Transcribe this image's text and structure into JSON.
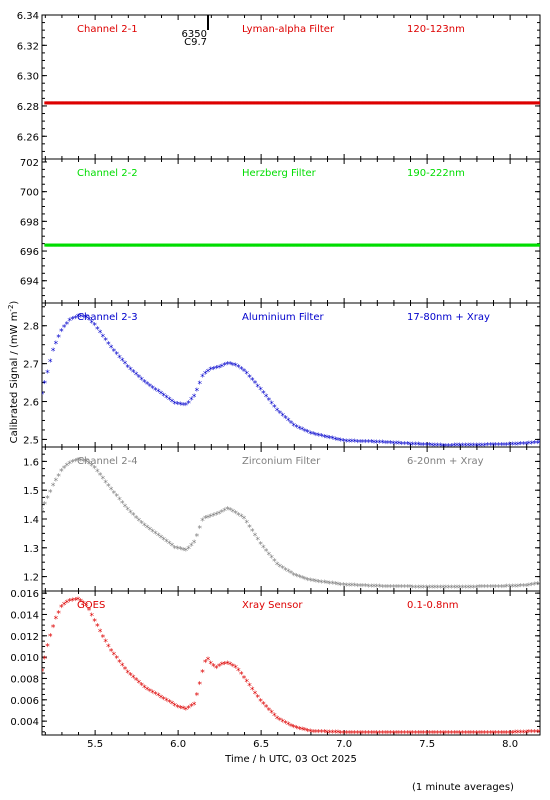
{
  "chart_data": {
    "type": "scatter",
    "xlabel": "Time / h UTC, 03 Oct 2025",
    "ylabel": "Calibrated Signal / (mW m",
    "ylabel_sup": "-2",
    "ylabel_close": ")",
    "xlim": [
      5.18,
      8.18
    ],
    "x_ticks": [
      5.5,
      6.0,
      6.5,
      7.0,
      7.5,
      8.0
    ],
    "x_tick_labels": [
      "5.5",
      "6.0",
      "6.5",
      "7.0",
      "7.5",
      "8.0"
    ],
    "footnote": "(1 minute averages)",
    "event_marker": {
      "x": 6.18,
      "label_top": "6350",
      "label_bottom": "C9.7"
    },
    "panels": [
      {
        "channel": "Channel 2-1",
        "filter": "Lyman-alpha Filter",
        "band": "120-123nm",
        "color": "#dd0000",
        "ylim": [
          6.245,
          6.34
        ],
        "y_ticks": [
          6.26,
          6.28,
          6.3,
          6.32,
          6.34
        ],
        "y_tick_labels": [
          "6.26",
          "6.28",
          "6.30",
          "6.32",
          "6.34"
        ],
        "series": [
          {
            "x": [
              5.2,
              8.18
            ],
            "y": [
              6.282,
              6.282
            ]
          }
        ]
      },
      {
        "channel": "Channel 2-2",
        "filter": "Herzberg Filter",
        "band": "190-222nm",
        "color": "#00dd00",
        "ylim": [
          692.5,
          702.2
        ],
        "y_ticks": [
          694,
          696,
          698,
          700,
          702
        ],
        "y_tick_labels": [
          "694",
          "696",
          "698",
          "700",
          "702"
        ],
        "series": [
          {
            "x": [
              5.2,
              8.18
            ],
            "y": [
              696.4,
              696.4
            ]
          }
        ]
      },
      {
        "channel": "Channel 2-3",
        "filter": "Aluminium Filter",
        "band": "17-80nm + Xray",
        "color": "#0000cc",
        "ylim": [
          2.48,
          2.86
        ],
        "y_ticks": [
          2.5,
          2.6,
          2.7,
          2.8
        ],
        "y_tick_labels": [
          "2.5",
          "2.6",
          "2.7",
          "2.8"
        ],
        "series": [
          {
            "x": [
              5.18,
              5.25,
              5.3,
              5.35,
              5.4,
              5.45,
              5.5,
              5.6,
              5.7,
              5.8,
              5.9,
              5.98,
              6.05,
              6.1,
              6.15,
              6.2,
              6.25,
              6.3,
              6.35,
              6.4,
              6.5,
              6.6,
              6.7,
              6.8,
              7.0,
              7.2,
              7.4,
              7.6,
              7.8,
              8.0,
              8.1,
              8.18
            ],
            "y": [
              2.62,
              2.74,
              2.79,
              2.815,
              2.825,
              2.822,
              2.8,
              2.74,
              2.69,
              2.65,
              2.62,
              2.595,
              2.59,
              2.615,
              2.67,
              2.685,
              2.69,
              2.7,
              2.695,
              2.68,
              2.63,
              2.575,
              2.535,
              2.515,
              2.495,
              2.492,
              2.487,
              2.483,
              2.484,
              2.486,
              2.488,
              2.492
            ]
          }
        ]
      },
      {
        "channel": "Channel 2-4",
        "filter": "Zirconium Filter",
        "band": "6-20nm + Xray",
        "color": "#808080",
        "ylim": [
          1.15,
          1.65
        ],
        "y_ticks": [
          1.2,
          1.3,
          1.4,
          1.5,
          1.6
        ],
        "y_tick_labels": [
          "1.2",
          "1.3",
          "1.4",
          "1.5",
          "1.6"
        ],
        "series": [
          {
            "x": [
              5.18,
              5.25,
              5.3,
              5.35,
              5.4,
              5.45,
              5.5,
              5.6,
              5.7,
              5.8,
              5.9,
              5.98,
              6.05,
              6.1,
              6.15,
              6.2,
              6.25,
              6.3,
              6.35,
              6.4,
              6.5,
              6.6,
              6.7,
              6.8,
              7.0,
              7.2,
              7.4,
              7.6,
              7.8,
              8.0,
              8.1,
              8.18
            ],
            "y": [
              1.43,
              1.52,
              1.57,
              1.595,
              1.605,
              1.6,
              1.575,
              1.5,
              1.43,
              1.375,
              1.335,
              1.3,
              1.29,
              1.32,
              1.4,
              1.41,
              1.42,
              1.435,
              1.42,
              1.4,
              1.31,
              1.24,
              1.205,
              1.185,
              1.17,
              1.165,
              1.163,
              1.162,
              1.163,
              1.165,
              1.168,
              1.175
            ]
          }
        ]
      },
      {
        "channel": "GOES",
        "filter": "Xray Sensor",
        "band": "0.1-0.8nm",
        "color": "#dd0000",
        "ylim": [
          0.0027,
          0.0162
        ],
        "y_ticks": [
          0.004,
          0.006,
          0.008,
          0.01,
          0.012,
          0.014,
          0.016
        ],
        "y_tick_labels": [
          "0.004",
          "0.006",
          "0.008",
          "0.010",
          "0.012",
          "0.014",
          "0.016"
        ],
        "series": [
          {
            "x": [
              5.18,
              5.22,
              5.26,
              5.3,
              5.35,
              5.4,
              5.45,
              5.5,
              5.55,
              5.6,
              5.7,
              5.8,
              5.9,
              6.0,
              6.05,
              6.1,
              6.13,
              6.16,
              6.18,
              6.2,
              6.23,
              6.26,
              6.3,
              6.35,
              6.4,
              6.5,
              6.6,
              6.7,
              6.8,
              7.0,
              7.2,
              7.4,
              7.6,
              7.8,
              8.0,
              8.18
            ],
            "y": [
              0.0087,
              0.0115,
              0.0135,
              0.0148,
              0.0153,
              0.0154,
              0.0148,
              0.0133,
              0.0118,
              0.0105,
              0.0085,
              0.0071,
              0.0062,
              0.0053,
              0.0051,
              0.0056,
              0.0075,
              0.0095,
              0.0098,
              0.0093,
              0.009,
              0.0093,
              0.0094,
              0.009,
              0.008,
              0.0058,
              0.0042,
              0.0034,
              0.003,
              0.0029,
              0.0029,
              0.0029,
              0.0029,
              0.0029,
              0.0029,
              0.003
            ]
          }
        ]
      }
    ]
  }
}
